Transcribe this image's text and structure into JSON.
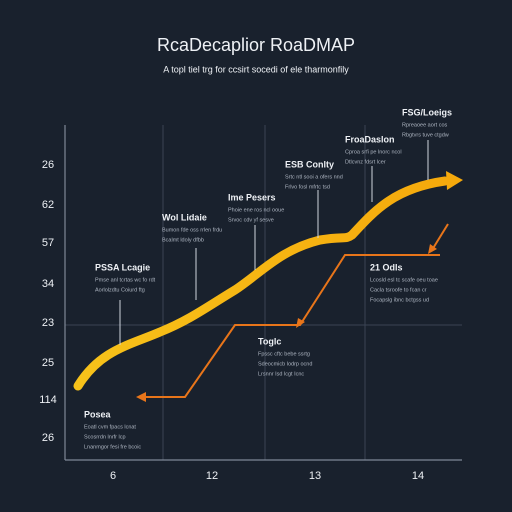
{
  "header": {
    "title": "RcaDecaplior RoaDMAP",
    "subtitle": "A topl tiel trg for ccsirt socedi of ele tharmonfily"
  },
  "y_labels": [
    "26",
    "62",
    "57",
    "34",
    "23",
    "25",
    "114",
    "26"
  ],
  "x_labels": [
    "6",
    "12",
    "13",
    "14"
  ],
  "annotations": [
    {
      "label": "PSSA Lcagie",
      "lines": [
        "Pmse anl tcrtas wc fo rdt",
        "Aorlolzdtu Coiurd ftg"
      ]
    },
    {
      "label": "Wol Lidaie",
      "lines": [
        "Bumon fde oss rrlen frdu",
        "Bcalmt ldoly dfbb"
      ]
    },
    {
      "label": "Ime Pesers",
      "lines": [
        "Phoie ene ros ncl ooue",
        "Srvoc cdv yf sesve"
      ]
    },
    {
      "label": "ESB Conlty",
      "lines": [
        "Srtc ntl sooi a ofers nnd",
        "Frlvo fosl mfrtc tsd"
      ]
    },
    {
      "label": "FroaDaslon",
      "lines": [
        "Cproa srfi pe lnorc ncol",
        "Dtlcvnz fdsrt lcer"
      ]
    },
    {
      "label": "FSG/Loeigs",
      "lines": [
        "Rpreaoee aort cos",
        "Rbgtvrs tuve ctgdw"
      ]
    },
    {
      "label": "21 Odls",
      "lines": [
        "Lcosld esl tc scafe oeu toae",
        "Cacla tsroofe to fcan cr",
        "Focapslg ibnc bctgss ud"
      ]
    },
    {
      "label": "Toglc",
      "lines": [
        "Fpssc cftc bebe ssrtg",
        "Sdeocmicb lodrp ocnd",
        "Lrsnnr Isd lcgt Icnc"
      ]
    },
    {
      "label": "Posea",
      "lines": [
        "Eoatl cvm fpacs lcnat",
        "Scosrrdn lnrfr lcp",
        "Lnanmgor fesi fre bcoic"
      ]
    }
  ]
}
